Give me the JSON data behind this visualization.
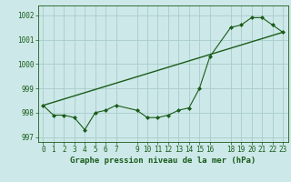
{
  "xlabel": "Graphe pression niveau de la mer (hPa)",
  "background_color": "#cce8e8",
  "grid_color": "#aacccc",
  "line_color": "#1a5c1a",
  "marker_color": "#1a5c1a",
  "ylim": [
    996.8,
    1002.4
  ],
  "yticks": [
    997,
    998,
    999,
    1000,
    1001,
    1002
  ],
  "xlim": [
    -0.5,
    23.5
  ],
  "xticks": [
    0,
    1,
    2,
    3,
    4,
    5,
    6,
    7,
    9,
    10,
    11,
    12,
    13,
    14,
    15,
    16,
    18,
    19,
    20,
    21,
    22,
    23
  ],
  "series1_x": [
    0,
    1,
    2,
    3,
    4,
    5,
    6,
    7,
    9,
    10,
    11,
    12,
    13,
    14,
    15,
    16,
    18,
    19,
    20,
    21,
    22,
    23
  ],
  "series1_y": [
    998.3,
    997.9,
    997.9,
    997.8,
    997.3,
    998.0,
    998.1,
    998.3,
    998.1,
    997.8,
    997.8,
    997.9,
    998.1,
    998.2,
    999.0,
    1000.3,
    1001.5,
    1001.6,
    1001.9,
    1001.9,
    1001.6,
    1001.3
  ],
  "series2_x": [
    0,
    23
  ],
  "series2_y": [
    998.3,
    1001.3
  ]
}
